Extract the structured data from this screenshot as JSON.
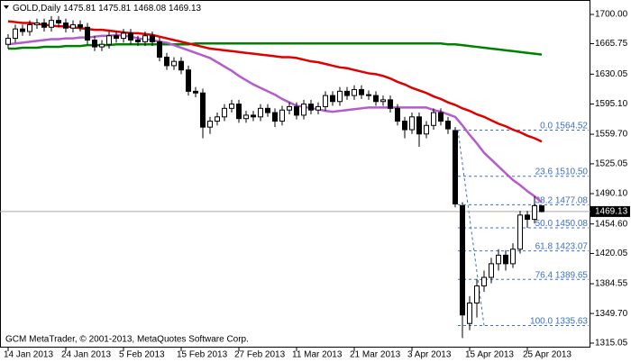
{
  "chart_data": {
    "type": "candlestick",
    "symbol": "GOLD,Daily",
    "credit": "GCM MetaTrader, © 2001-2013, MetaQuotes Software Corp.",
    "x": [
      "14 Jan 2013",
      null,
      null,
      null,
      null,
      null,
      null,
      null,
      "24 Jan 2013",
      null,
      null,
      null,
      null,
      null,
      null,
      null,
      "5 Feb 2013",
      null,
      null,
      null,
      null,
      null,
      null,
      null,
      "15 Feb 2013",
      null,
      null,
      null,
      null,
      null,
      null,
      null,
      "27 Feb 2013",
      null,
      null,
      null,
      null,
      null,
      null,
      null,
      "11 Mar 2013",
      null,
      null,
      null,
      null,
      null,
      null,
      null,
      "21 Mar 2013",
      null,
      null,
      null,
      null,
      null,
      null,
      null,
      "3 Apr 2013",
      null,
      null,
      null,
      null,
      null,
      null,
      null,
      "15 Apr 2013",
      null,
      null,
      null,
      null,
      null,
      null,
      null,
      "25 Apr 2013",
      null,
      null
    ],
    "open": [
      1665,
      1672,
      1683,
      1680,
      1688,
      1690,
      1685,
      1693,
      1690,
      1684,
      1688,
      1685,
      1670,
      1662,
      1665,
      1675,
      1672,
      1678,
      1670,
      1668,
      1675,
      1668,
      1650,
      1640,
      1645,
      1635,
      1610,
      1608,
      1568,
      1575,
      1580,
      1590,
      1595,
      1578,
      1582,
      1580,
      1590,
      1585,
      1575,
      1588,
      1592,
      1582,
      1595,
      1588,
      1592,
      1605,
      1598,
      1610,
      1605,
      1612,
      1606,
      1605,
      1598,
      1600,
      1590,
      1575,
      1565,
      1580,
      1560,
      1570,
      1585,
      1575,
      1564,
      1476,
      1338,
      1362,
      1382,
      1392,
      1408,
      1418,
      1408,
      1425,
      1465,
      1460,
      1475.81
    ],
    "high": [
      1677,
      1688,
      1688,
      1693,
      1695,
      1695,
      1698,
      1698,
      1695,
      1693,
      1693,
      1690,
      1675,
      1670,
      1680,
      1680,
      1683,
      1683,
      1675,
      1680,
      1680,
      1673,
      1655,
      1650,
      1650,
      1640,
      1615,
      1613,
      1580,
      1585,
      1595,
      1600,
      1600,
      1587,
      1587,
      1595,
      1595,
      1590,
      1593,
      1597,
      1597,
      1600,
      1600,
      1597,
      1610,
      1610,
      1615,
      1615,
      1617,
      1617,
      1611,
      1610,
      1605,
      1605,
      1595,
      1580,
      1585,
      1585,
      1575,
      1590,
      1590,
      1580,
      1568,
      1480,
      1370,
      1390,
      1400,
      1415,
      1425,
      1424,
      1432,
      1470,
      1470,
      1487,
      1475.81
    ],
    "low": [
      1660,
      1667,
      1675,
      1675,
      1683,
      1680,
      1680,
      1685,
      1679,
      1679,
      1680,
      1665,
      1657,
      1657,
      1660,
      1667,
      1667,
      1665,
      1663,
      1663,
      1663,
      1645,
      1635,
      1635,
      1630,
      1605,
      1603,
      1555,
      1560,
      1570,
      1575,
      1585,
      1573,
      1573,
      1575,
      1575,
      1580,
      1568,
      1570,
      1583,
      1577,
      1577,
      1583,
      1583,
      1587,
      1593,
      1593,
      1600,
      1600,
      1601,
      1600,
      1593,
      1593,
      1585,
      1570,
      1555,
      1560,
      1545,
      1555,
      1565,
      1570,
      1560,
      1474,
      1321,
      1330,
      1345,
      1375,
      1385,
      1400,
      1400,
      1403,
      1420,
      1450,
      1455,
      1468.08
    ],
    "close": [
      1672,
      1683,
      1680,
      1688,
      1690,
      1685,
      1693,
      1690,
      1684,
      1688,
      1685,
      1670,
      1662,
      1665,
      1675,
      1672,
      1678,
      1670,
      1668,
      1675,
      1668,
      1650,
      1640,
      1645,
      1635,
      1610,
      1608,
      1568,
      1575,
      1580,
      1590,
      1595,
      1578,
      1582,
      1580,
      1590,
      1585,
      1575,
      1588,
      1592,
      1582,
      1595,
      1588,
      1592,
      1605,
      1598,
      1610,
      1605,
      1612,
      1606,
      1605,
      1598,
      1600,
      1590,
      1575,
      1565,
      1580,
      1560,
      1570,
      1585,
      1575,
      1566,
      1478,
      1348,
      1362,
      1382,
      1392,
      1408,
      1418,
      1408,
      1425,
      1465,
      1460,
      1476,
      1469.13
    ],
    "moving_averages": [
      {
        "color": "#008000",
        "values": [
          1660,
          1660,
          1661,
          1661,
          1661,
          1662,
          1662,
          1662,
          1663,
          1663,
          1663,
          1664,
          1664,
          1664,
          1664,
          1665,
          1665,
          1665,
          1665,
          1665,
          1665,
          1665,
          1665,
          1665,
          1665,
          1665,
          1666,
          1666,
          1666,
          1666,
          1666,
          1666,
          1666,
          1666,
          1666,
          1666,
          1666,
          1666,
          1666,
          1666,
          1666,
          1666,
          1666,
          1666,
          1666,
          1666,
          1666,
          1666,
          1666,
          1666,
          1666,
          1666,
          1666,
          1666,
          1666,
          1666,
          1666,
          1666,
          1666,
          1666,
          1666,
          1665,
          1665,
          1664,
          1663,
          1662,
          1661,
          1660,
          1659,
          1658,
          1657,
          1656,
          1655,
          1654,
          1653
        ]
      },
      {
        "color": "#e00000",
        "values": [
          1692,
          1691,
          1690,
          1690,
          1689,
          1688,
          1687,
          1686,
          1686,
          1685,
          1684,
          1683,
          1682,
          1682,
          1681,
          1680,
          1679,
          1678,
          1678,
          1677,
          1676,
          1674,
          1672,
          1670,
          1668,
          1666,
          1664,
          1662,
          1660,
          1659,
          1658,
          1657,
          1656,
          1655,
          1654,
          1653,
          1652,
          1651,
          1650,
          1650,
          1649,
          1647,
          1645,
          1644,
          1642,
          1640,
          1638,
          1637,
          1635,
          1633,
          1631,
          1630,
          1628,
          1625,
          1621,
          1618,
          1614,
          1611,
          1608,
          1604,
          1601,
          1597,
          1594,
          1590,
          1587,
          1583,
          1580,
          1576,
          1572,
          1569,
          1565,
          1562,
          1558,
          1555,
          1551
        ]
      },
      {
        "color": "#b45ccc",
        "values": [
          1665,
          1666,
          1667,
          1668,
          1669,
          1670,
          1671,
          1671,
          1672,
          1672,
          1673,
          1673,
          1674,
          1675,
          1675,
          1676,
          1675,
          1674,
          1672,
          1671,
          1670,
          1668,
          1667,
          1664,
          1661,
          1658,
          1655,
          1652,
          1649,
          1644,
          1639,
          1634,
          1628,
          1623,
          1618,
          1614,
          1610,
          1606,
          1601,
          1597,
          1593,
          1592,
          1590,
          1589,
          1587,
          1586,
          1587,
          1588,
          1589,
          1590,
          1591,
          1591,
          1591,
          1591,
          1591,
          1591,
          1591,
          1591,
          1591,
          1588,
          1586,
          1583,
          1580,
          1570,
          1559,
          1549,
          1538,
          1530,
          1522,
          1514,
          1506,
          1500,
          1493,
          1487,
          1480
        ]
      }
    ],
    "fib_color": "#3a6fc8",
    "fib_levels": [
      {
        "ratio": "0.0",
        "price": 1564.52
      },
      {
        "ratio": "23.6",
        "price": {
          "value": 1510.5,
          "label": "1510.50"
        }
      },
      {
        "ratio": "38.2",
        "price": 1477.08
      },
      {
        "ratio": "50.0",
        "price": 1450.08
      },
      {
        "ratio": "61.8",
        "price": 1423.07
      },
      {
        "ratio": "76.4",
        "price": 1389.65
      },
      {
        "ratio": "100.0",
        "price": 1335.63
      }
    ],
    "ylim": [
      1309.76,
      1715.86
    ],
    "yticks": [
      {
        "value": 1700,
        "label": "1700.00"
      },
      1665.75,
      1630.05,
      {
        "value": 1595.1,
        "label": "1595.10"
      },
      {
        "value": 1559.7,
        "label": "1559.70"
      },
      1525.05,
      {
        "value": 1490.1,
        "label": "1490.10"
      },
      {
        "value": 1454.6,
        "label": "1454.60"
      },
      1420.05,
      1384.55,
      {
        "value": 1349.7,
        "label": "1349.70"
      },
      1315.05
    ],
    "grid": false
  }
}
